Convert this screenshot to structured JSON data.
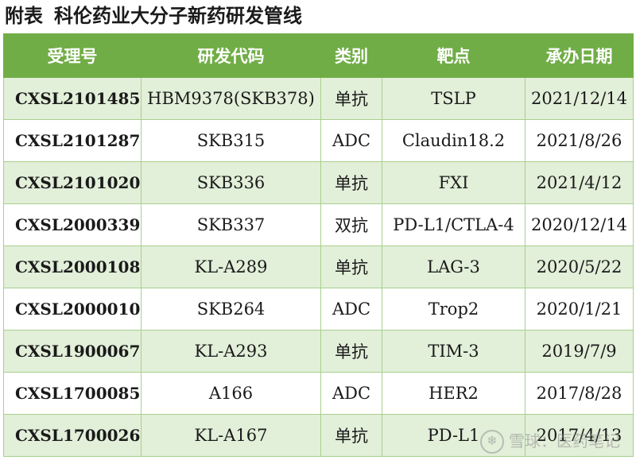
{
  "title": {
    "prefix": "附表",
    "text": "科伦药业大分子新药研发管线"
  },
  "table": {
    "headers": [
      "受理号",
      "研发代码",
      "类别",
      "靶点",
      "承办日期"
    ],
    "rows": [
      [
        "CXSL2101485",
        "HBM9378(SKB378)",
        "单抗",
        "TSLP",
        "2021/12/14"
      ],
      [
        "CXSL2101287",
        "SKB315",
        "ADC",
        "Claudin18.2",
        "2021/8/26"
      ],
      [
        "CXSL2101020",
        "SKB336",
        "单抗",
        "FXI",
        "2021/4/12"
      ],
      [
        "CXSL2000339",
        "SKB337",
        "双抗",
        "PD-L1/CTLA-4",
        "2020/12/14"
      ],
      [
        "CXSL2000108",
        "KL-A289",
        "单抗",
        "LAG-3",
        "2020/5/22"
      ],
      [
        "CXSL2000010",
        "SKB264",
        "ADC",
        "Trop2",
        "2020/1/21"
      ],
      [
        "CXSL1900067",
        "KL-A293",
        "单抗",
        "TIM-3",
        "2019/7/9"
      ],
      [
        "CXSL1700085",
        "A166",
        "ADC",
        "HER2",
        "2017/8/28"
      ],
      [
        "CXSL1700026",
        "KL-A167",
        "单抗",
        "PD-L1",
        "2017/4/13"
      ]
    ]
  },
  "watermark": {
    "icon": "snowball-icon",
    "text": "雪球：医药笔记"
  },
  "colors": {
    "header_bg": "#71ad47",
    "band_bg": "#e2efd9",
    "border": "#a8d08d"
  }
}
